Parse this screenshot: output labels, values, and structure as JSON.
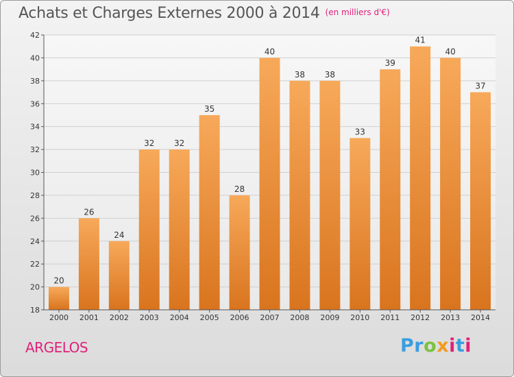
{
  "header": {
    "title": "Achats et Charges Externes 2000 à 2014",
    "unit": "(en milliers d'€)"
  },
  "footer": {
    "place": "ARGELOS",
    "logo": [
      "P",
      "r",
      "o",
      "x",
      "i",
      "t",
      "i"
    ]
  },
  "colors": {
    "bar_top": "#f7a95a",
    "bar_bottom": "#d9741e",
    "title": "#555555",
    "accent": "#e0207a"
  },
  "chart_data": {
    "type": "bar",
    "title": "Achats et Charges Externes 2000 à 2014",
    "subtitle": "(en milliers d'€)",
    "xlabel": "",
    "ylabel": "",
    "categories": [
      "2000",
      "2001",
      "2002",
      "2003",
      "2004",
      "2005",
      "2006",
      "2007",
      "2008",
      "2009",
      "2010",
      "2011",
      "2012",
      "2013",
      "2014"
    ],
    "values": [
      20,
      26,
      24,
      32,
      32,
      35,
      28,
      40,
      38,
      38,
      33,
      39,
      41,
      40,
      37
    ],
    "ylim": [
      18,
      42
    ],
    "yticks": [
      18,
      20,
      22,
      24,
      26,
      28,
      30,
      32,
      34,
      36,
      38,
      40,
      42
    ],
    "grid": true,
    "legend": "none"
  }
}
